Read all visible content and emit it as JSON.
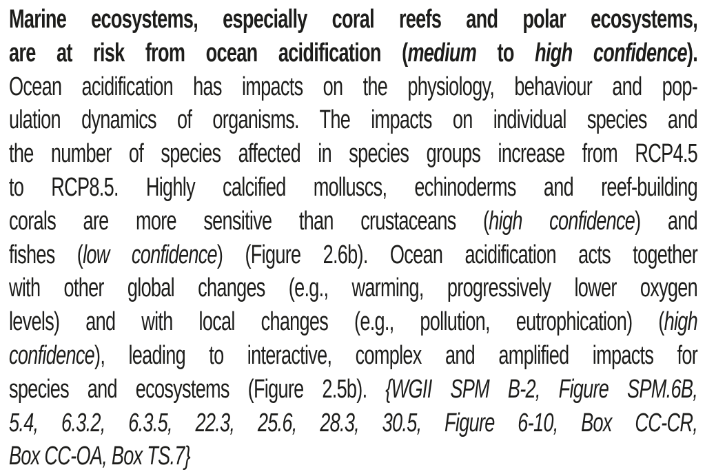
{
  "page": {
    "background": "#ffffff",
    "text_color": "#1d1d1b"
  },
  "paragraph": {
    "full_text": "Marine ecosystems, especially coral reefs and polar ecosystems, are at risk from ocean acidification (medium to high confidence). Ocean acidification has impacts on the physiology, behaviour and population dynamics of organisms. The impacts on individual species and the number of species affected in species groups increase from RCP4.5 to RCP8.5. Highly calcified molluscs, echinoderms and reef-building corals are more sensitive than crustaceans (high confidence) and fishes (low confidence) (Figure 2.6b). Ocean acidification acts together with other global changes (e.g., warming, progressively lower oxygen levels) and with local changes (e.g., pollution, eutrophication) (high confidence), leading to interactive, complex and amplified impacts for species and ecosystems (Figure 2.5b). {WGII SPM B-2, Figure SPM.6B, 5.4, 6.3.2, 6.3.5, 22.3, 25.6, 28.3, 30.5, Figure 6-10, Box CC-CR, Box CC-OA, Box TS.7}",
    "lines": [
      {
        "align": "justify",
        "runs": [
          {
            "text": "Marine ecosystems, especially coral reefs and polar ecosystems,",
            "style": "bold"
          }
        ]
      },
      {
        "align": "justify",
        "runs": [
          {
            "text": "are at risk from ocean acidification (",
            "style": "bold"
          },
          {
            "text": "medium",
            "style": "bold-italic"
          },
          {
            "text": " to ",
            "style": "bold"
          },
          {
            "text": "high confidence",
            "style": "bold-italic"
          },
          {
            "text": ").",
            "style": "bold"
          }
        ]
      },
      {
        "align": "justify",
        "runs": [
          {
            "text": "Ocean acidification has impacts on the physiology, behaviour and pop-",
            "style": "regular"
          }
        ]
      },
      {
        "align": "justify",
        "runs": [
          {
            "text": "ulation dynamics of organisms. The impacts on individual species and",
            "style": "regular"
          }
        ]
      },
      {
        "align": "justify",
        "runs": [
          {
            "text": "the number of species affected in species groups increase from RCP4.5",
            "style": "regular"
          }
        ]
      },
      {
        "align": "justify",
        "runs": [
          {
            "text": "to RCP8.5. Highly calcified molluscs, echinoderms and reef-building",
            "style": "regular"
          }
        ]
      },
      {
        "align": "justify",
        "runs": [
          {
            "text": "corals are more sensitive than crustaceans (",
            "style": "regular"
          },
          {
            "text": "high confidence",
            "style": "italic"
          },
          {
            "text": ") and",
            "style": "regular"
          }
        ]
      },
      {
        "align": "justify",
        "runs": [
          {
            "text": "fishes (",
            "style": "regular"
          },
          {
            "text": "low confidence",
            "style": "italic"
          },
          {
            "text": ") (Figure 2.6b). Ocean acidification acts together",
            "style": "regular"
          }
        ]
      },
      {
        "align": "justify",
        "runs": [
          {
            "text": "with other global changes (e.g., warming, progressively lower oxygen",
            "style": "regular"
          }
        ]
      },
      {
        "align": "justify",
        "runs": [
          {
            "text": "levels) and with local changes (e.g., pollution, eutrophication) (",
            "style": "regular"
          },
          {
            "text": "high",
            "style": "italic"
          }
        ]
      },
      {
        "align": "justify",
        "runs": [
          {
            "text": "confidence",
            "style": "italic"
          },
          {
            "text": "), leading to interactive, complex and amplified impacts for",
            "style": "regular"
          }
        ]
      },
      {
        "align": "justify",
        "runs": [
          {
            "text": "species and ecosystems (Figure 2.5b). ",
            "style": "regular"
          },
          {
            "text": "{WGII SPM B-2, Figure SPM.6B,",
            "style": "italic"
          }
        ]
      },
      {
        "align": "justify",
        "runs": [
          {
            "text": "5.4, 6.3.2, 6.3.5, 22.3, 25.6, 28.3, 30.5, Figure 6-10, Box CC-CR,",
            "style": "italic"
          }
        ]
      },
      {
        "align": "left",
        "runs": [
          {
            "text": "Box CC-OA, Box TS.7}",
            "style": "italic"
          }
        ]
      }
    ]
  }
}
